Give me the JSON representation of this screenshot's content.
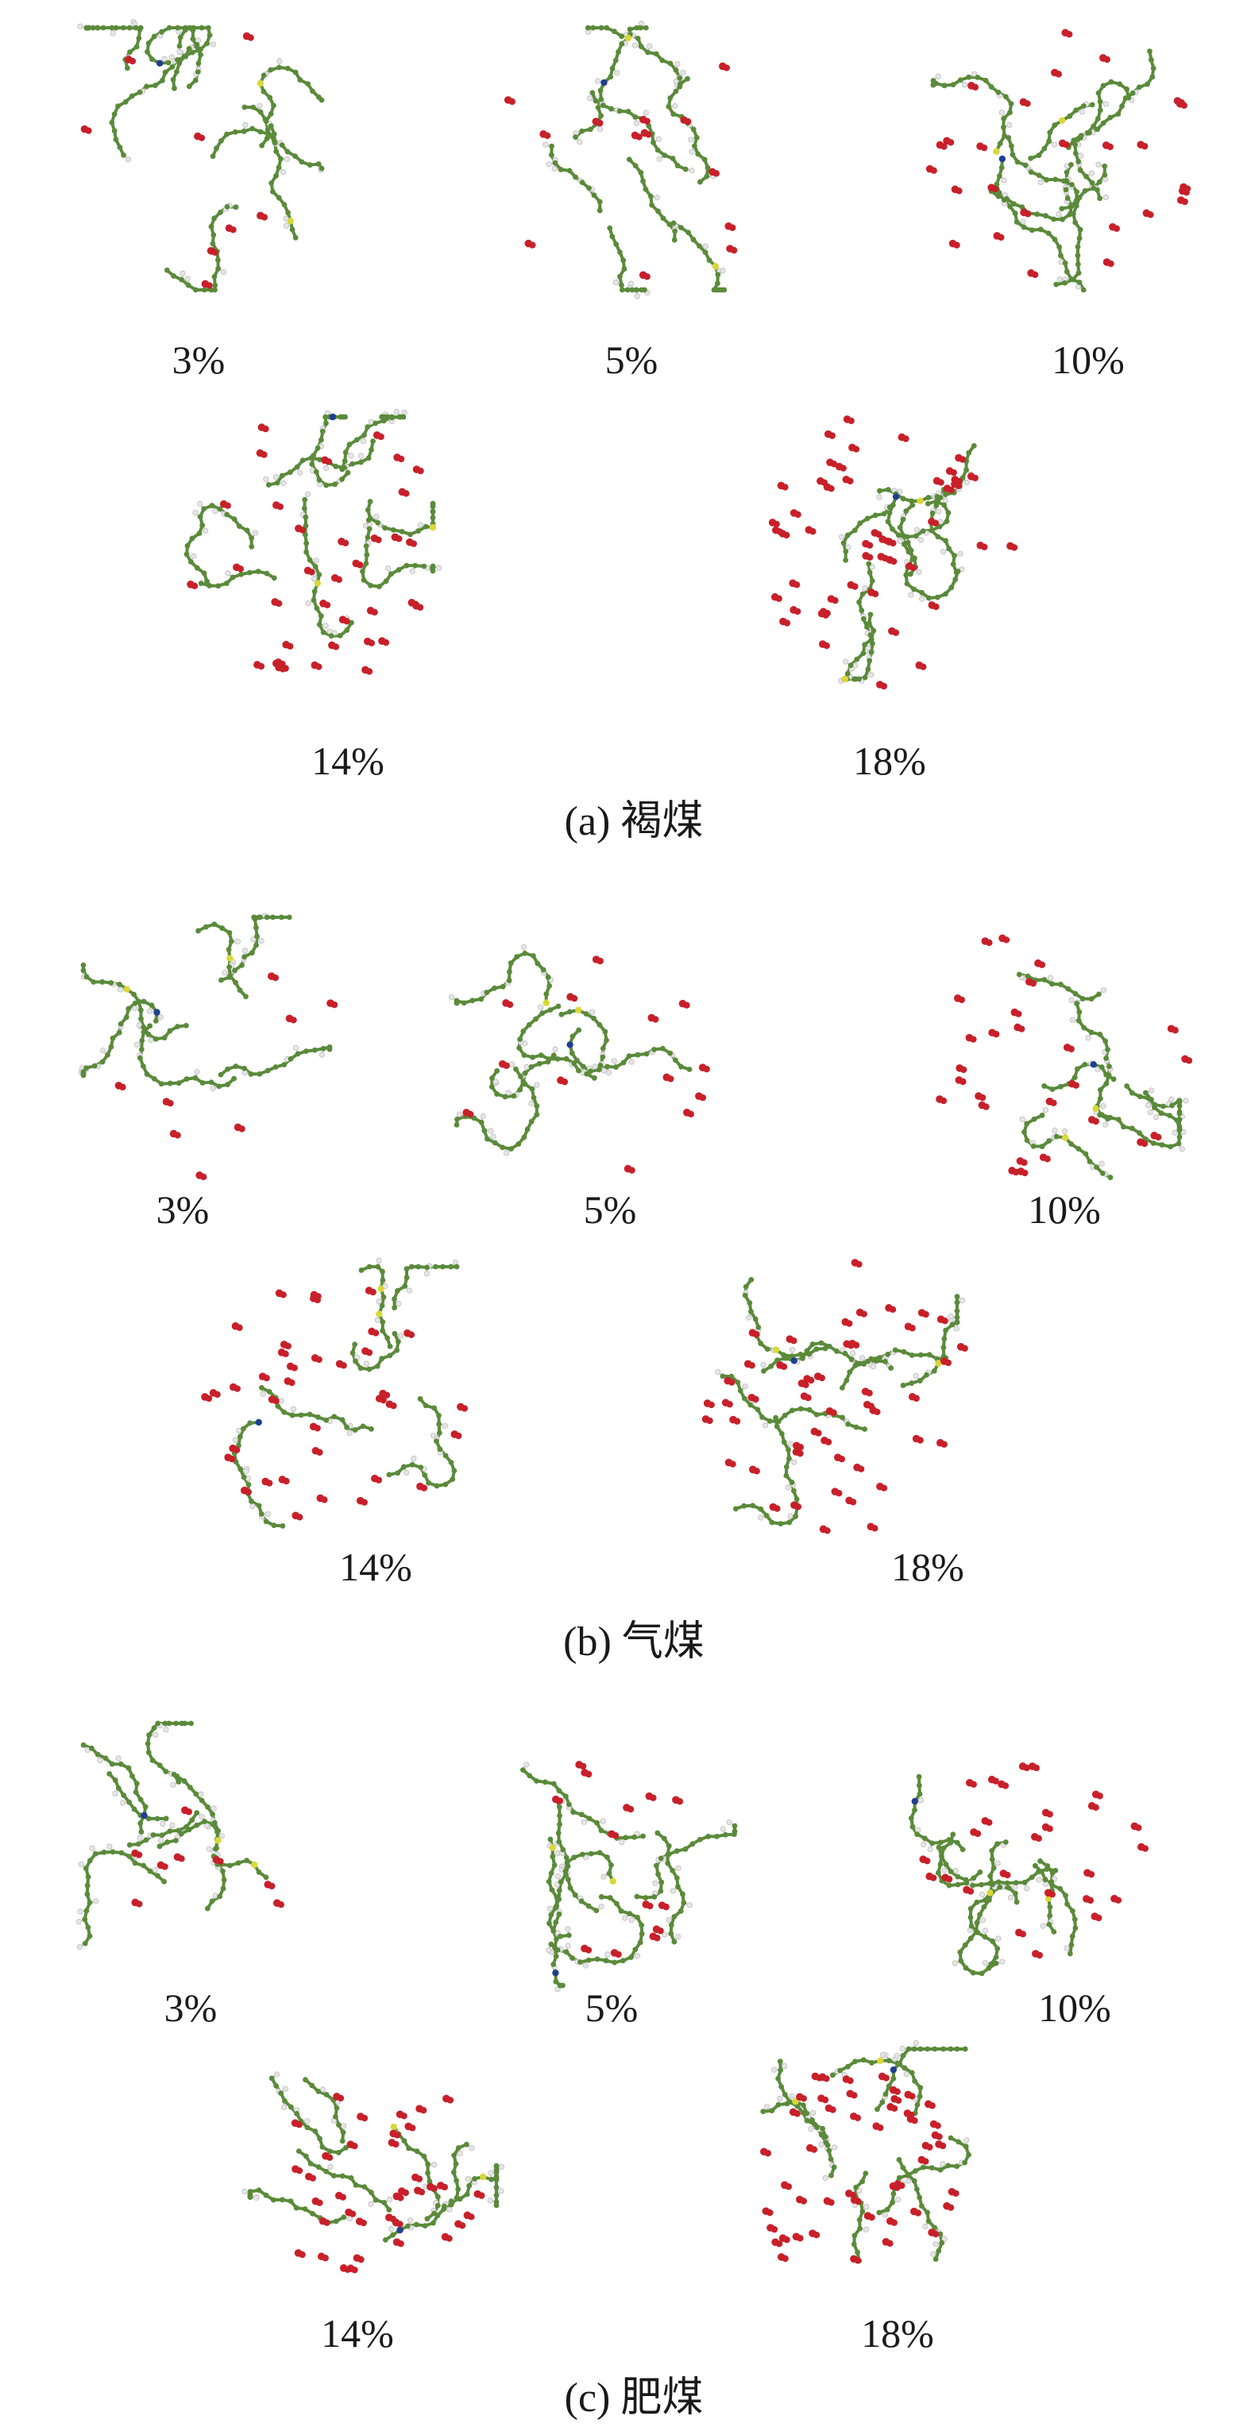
{
  "colors": {
    "carbon": "#5a8a3a",
    "hydrogen": "#e6e6e6",
    "oxygen_water": "#c8202a",
    "nitrogen": "#1f3f8f",
    "sulfur": "#d8d83a"
  },
  "panels": [
    {
      "id": "a",
      "caption": "(a) 褐煤",
      "molecules": [
        {
          "label": "3%",
          "water": 0.03
        },
        {
          "label": "5%",
          "water": 0.05
        },
        {
          "label": "10%",
          "water": 0.1
        },
        {
          "label": "14%",
          "water": 0.14
        },
        {
          "label": "18%",
          "water": 0.18
        }
      ]
    },
    {
      "id": "b",
      "caption": "(b) 气煤",
      "molecules": [
        {
          "label": "3%",
          "water": 0.03
        },
        {
          "label": "5%",
          "water": 0.05
        },
        {
          "label": "10%",
          "water": 0.1
        },
        {
          "label": "14%",
          "water": 0.14
        },
        {
          "label": "18%",
          "water": 0.18
        }
      ]
    },
    {
      "id": "c",
      "caption": "(c) 肥煤",
      "molecules": [
        {
          "label": "3%",
          "water": 0.03
        },
        {
          "label": "5%",
          "water": 0.05
        },
        {
          "label": "10%",
          "water": 0.1
        },
        {
          "label": "14%",
          "water": 0.14
        },
        {
          "label": "18%",
          "water": 0.18
        }
      ]
    }
  ]
}
